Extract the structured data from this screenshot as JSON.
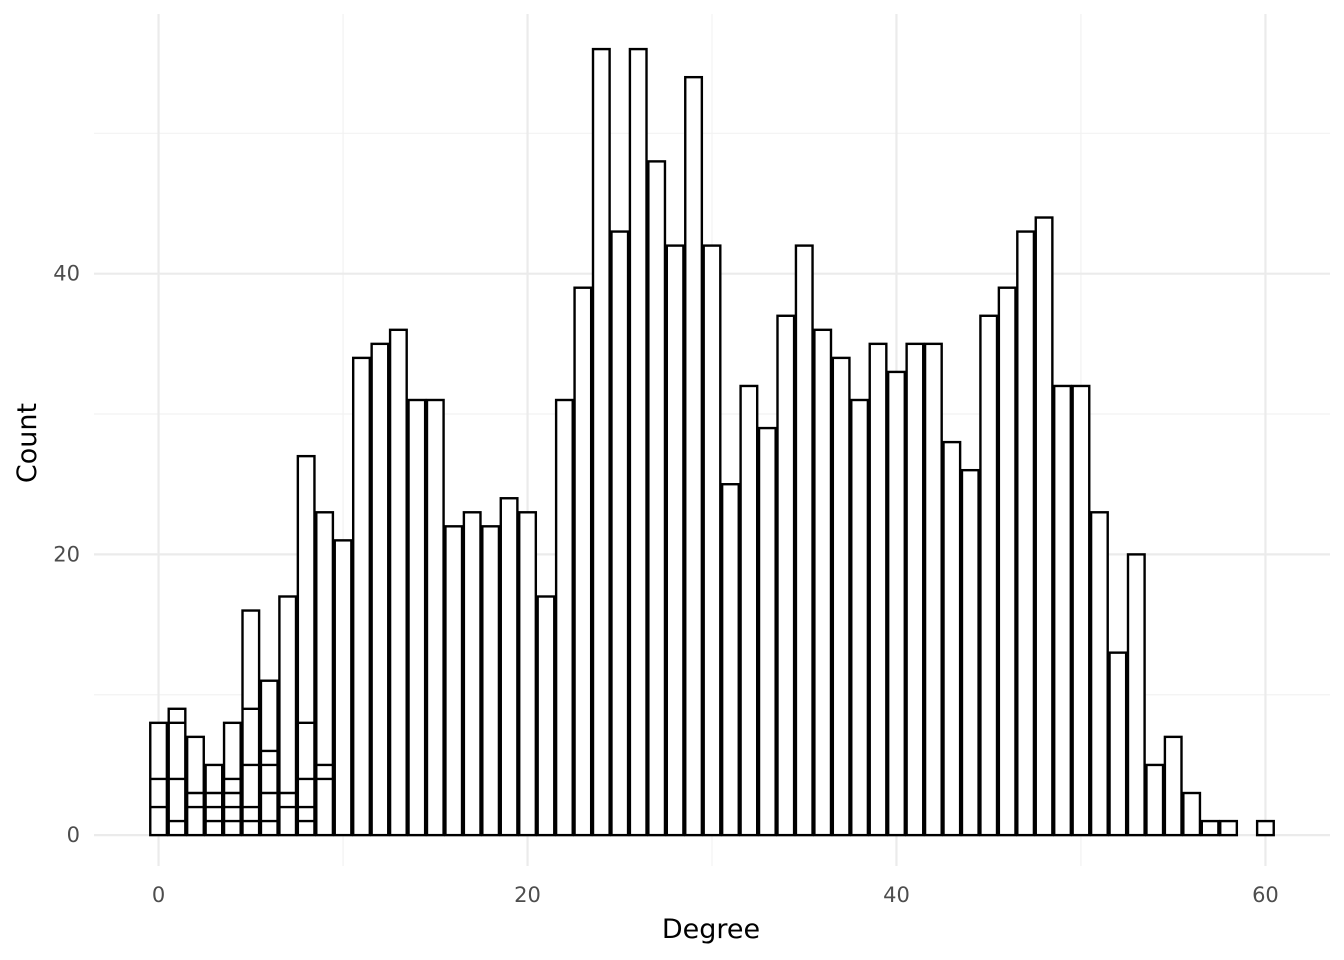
{
  "chart_data": {
    "type": "bar",
    "title": "",
    "xlabel": "Degree",
    "ylabel": "Count",
    "xlim": [
      -3.5,
      63.5
    ],
    "ylim": [
      -2.2,
      58.5
    ],
    "x_ticks": [
      0,
      20,
      40,
      60
    ],
    "y_ticks": [
      0,
      20,
      40
    ],
    "grid": true,
    "bar_fill": "#ffffff",
    "bar_stroke": "#000000",
    "grid_major_color": "#ebebeb",
    "grid_minor_color": "#f2f2f2",
    "x": [
      0,
      1,
      2,
      3,
      4,
      5,
      6,
      7,
      8,
      9,
      10,
      11,
      12,
      13,
      14,
      15,
      16,
      17,
      18,
      19,
      20,
      21,
      22,
      23,
      24,
      25,
      26,
      27,
      28,
      29,
      30,
      31,
      32,
      33,
      34,
      35,
      36,
      37,
      38,
      39,
      40,
      41,
      42,
      43,
      44,
      45,
      46,
      47,
      48,
      49,
      50,
      51,
      52,
      53,
      54,
      55,
      56,
      57,
      58,
      60
    ],
    "values": [
      8,
      9,
      7,
      5,
      8,
      16,
      11,
      17,
      27,
      23,
      21,
      34,
      35,
      36,
      31,
      31,
      22,
      23,
      22,
      24,
      23,
      17,
      31,
      39,
      56,
      43,
      56,
      48,
      42,
      54,
      42,
      25,
      32,
      29,
      37,
      42,
      36,
      34,
      31,
      35,
      33,
      35,
      35,
      28,
      26,
      37,
      39,
      43,
      44,
      32,
      32,
      23,
      13,
      20,
      5,
      7,
      3,
      1,
      1,
      1
    ],
    "stacked_segments": [
      {
        "x": 0,
        "breaks": [
          2,
          4
        ]
      },
      {
        "x": 1,
        "breaks": [
          1,
          4,
          8
        ]
      },
      {
        "x": 2,
        "breaks": [
          2,
          3
        ]
      },
      {
        "x": 3,
        "breaks": [
          1,
          2,
          3
        ]
      },
      {
        "x": 4,
        "breaks": [
          1,
          2,
          3,
          4
        ]
      },
      {
        "x": 5,
        "breaks": [
          1,
          2,
          5,
          9
        ]
      },
      {
        "x": 6,
        "breaks": [
          1,
          3,
          5,
          6
        ]
      },
      {
        "x": 7,
        "breaks": [
          2,
          3
        ]
      },
      {
        "x": 8,
        "breaks": [
          1,
          2,
          4,
          8
        ]
      },
      {
        "x": 9,
        "breaks": [
          4,
          5
        ]
      }
    ]
  }
}
